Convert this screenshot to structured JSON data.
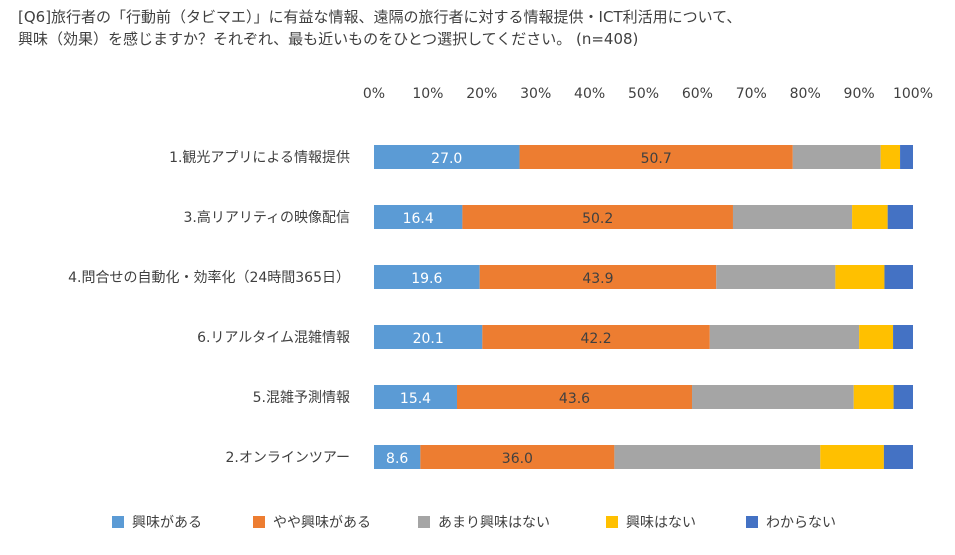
{
  "title_lines": [
    "[Q6]旅行者の「行動前（タビマエ）」に有益な情報、遠隔の旅行者に対する情報提供・ICT利活用について、",
    "興味（効果）を感じますか？それぞれ、最も近いものをひとつ選択してください。 (n=408)"
  ],
  "chart_data": {
    "type": "bar",
    "orientation": "horizontal",
    "stacked": true,
    "percent_stacked": true,
    "categories": [
      "1.観光アプリによる情報提供",
      "3.高リアリティの映像配信",
      "4.問合せの自動化・効率化（24時間365日）",
      "6.リアルタイム混雑情報",
      "5.混雑予測情報",
      "2.オンラインツアー"
    ],
    "series": [
      {
        "name": "興味がある",
        "color": "#5B9BD5",
        "values": [
          27.0,
          16.4,
          19.6,
          20.1,
          15.4,
          8.6
        ],
        "labels": [
          "27.0",
          "16.4",
          "19.6",
          "20.1",
          "15.4",
          "8.6"
        ]
      },
      {
        "name": "やや興味がある",
        "color": "#ED7D31",
        "values": [
          50.7,
          50.2,
          43.9,
          42.2,
          43.6,
          36.0
        ],
        "labels": [
          "50.7",
          "50.2",
          "43.9",
          "42.2",
          "43.6",
          "36.0"
        ]
      },
      {
        "name": "あまり興味はない",
        "color": "#A5A5A5",
        "values": [
          16.3,
          22.1,
          22.1,
          27.7,
          30.0,
          38.2
        ]
      },
      {
        "name": "興味はない",
        "color": "#FFC000",
        "values": [
          3.6,
          6.6,
          9.1,
          6.3,
          7.4,
          11.8
        ]
      },
      {
        "name": "わからない",
        "color": "#4472C4",
        "values": [
          2.4,
          4.7,
          5.3,
          3.7,
          3.6,
          5.4
        ]
      }
    ],
    "xlim": [
      0,
      100
    ],
    "x_ticks": [
      "0%",
      "10%",
      "20%",
      "30%",
      "40%",
      "50%",
      "60%",
      "70%",
      "80%",
      "90%",
      "100%"
    ],
    "x_axis_position": "top",
    "grid": false,
    "legend_position": "bottom"
  }
}
